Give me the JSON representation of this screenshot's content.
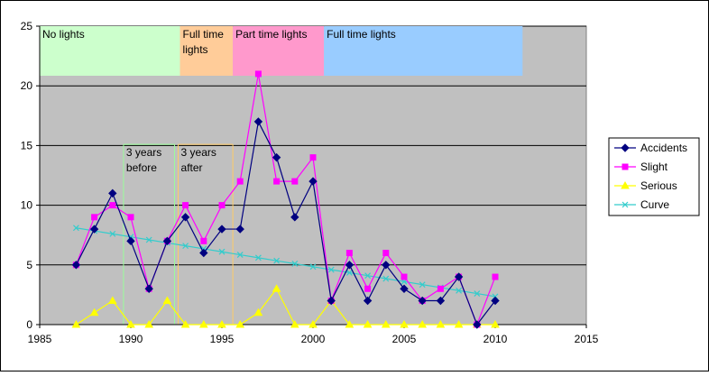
{
  "chart_data": {
    "type": "line",
    "xlim": [
      1985,
      2015
    ],
    "ylim": [
      0,
      25
    ],
    "x_ticks": [
      1985,
      1990,
      1995,
      2000,
      2005,
      2010,
      2015
    ],
    "y_ticks": [
      0,
      5,
      10,
      15,
      20,
      25
    ],
    "grid": "horizontal",
    "legend_position": "right",
    "x": [
      1987,
      1988,
      1989,
      1990,
      1991,
      1992,
      1993,
      1994,
      1995,
      1996,
      1997,
      1998,
      1999,
      2000,
      2001,
      2002,
      2003,
      2004,
      2005,
      2006,
      2007,
      2008,
      2009,
      2010
    ],
    "series": [
      {
        "name": "Accidents",
        "color": "#000080",
        "marker": "diamond",
        "values": [
          5,
          8,
          11,
          7,
          3,
          7,
          9,
          6,
          8,
          8,
          17,
          14,
          9,
          12,
          2,
          5,
          2,
          5,
          3,
          2,
          2,
          4,
          0,
          2
        ]
      },
      {
        "name": "Slight",
        "color": "#FF00FF",
        "marker": "square",
        "values": [
          5,
          9,
          10,
          9,
          3,
          7,
          10,
          7,
          10,
          12,
          21,
          12,
          12,
          14,
          2,
          6,
          3,
          6,
          4,
          2,
          3,
          4,
          0,
          4
        ]
      },
      {
        "name": "Serious",
        "color": "#FFFF00",
        "marker": "triangle",
        "values": [
          0,
          1,
          2,
          0,
          0,
          2,
          0,
          0,
          0,
          0,
          1,
          3,
          0,
          0,
          2,
          0,
          0,
          0,
          0,
          0,
          0,
          0,
          0,
          0
        ]
      },
      {
        "name": "Curve",
        "color": "#33CCCC",
        "marker": "x",
        "values": [
          8.1,
          7.85,
          7.6,
          7.35,
          7.1,
          6.85,
          6.6,
          6.35,
          6.1,
          5.85,
          5.6,
          5.35,
          5.1,
          4.85,
          4.6,
          4.35,
          4.1,
          3.85,
          3.6,
          3.35,
          3.1,
          2.85,
          2.6,
          2.35
        ]
      }
    ],
    "annotations": {
      "top_bands": [
        {
          "lines": [
            "No lights"
          ],
          "x_start": 1985.0,
          "x_end": 1992.7,
          "color": "#CCFFCC"
        },
        {
          "lines": [
            "Full time",
            "lights"
          ],
          "x_start": 1992.7,
          "x_end": 1995.6,
          "color": "#FFCC99"
        },
        {
          "lines": [
            "Part time lights"
          ],
          "x_start": 1995.6,
          "x_end": 2000.6,
          "color": "#FF99CC"
        },
        {
          "lines": [
            "Full time lights"
          ],
          "x_start": 2000.6,
          "x_end": 2011.5,
          "color": "#99CCFF"
        }
      ],
      "windows": [
        {
          "lines": [
            "3 years",
            "before"
          ],
          "x_start": 1989.6,
          "x_end": 1992.4,
          "color": "#99FF99"
        },
        {
          "lines": [
            "3 years",
            "after"
          ],
          "x_start": 1992.6,
          "x_end": 1995.6,
          "color": "#FFCC66"
        }
      ]
    },
    "colors": {
      "plot_background": "#C0C0C0",
      "grid": "#000000"
    }
  }
}
